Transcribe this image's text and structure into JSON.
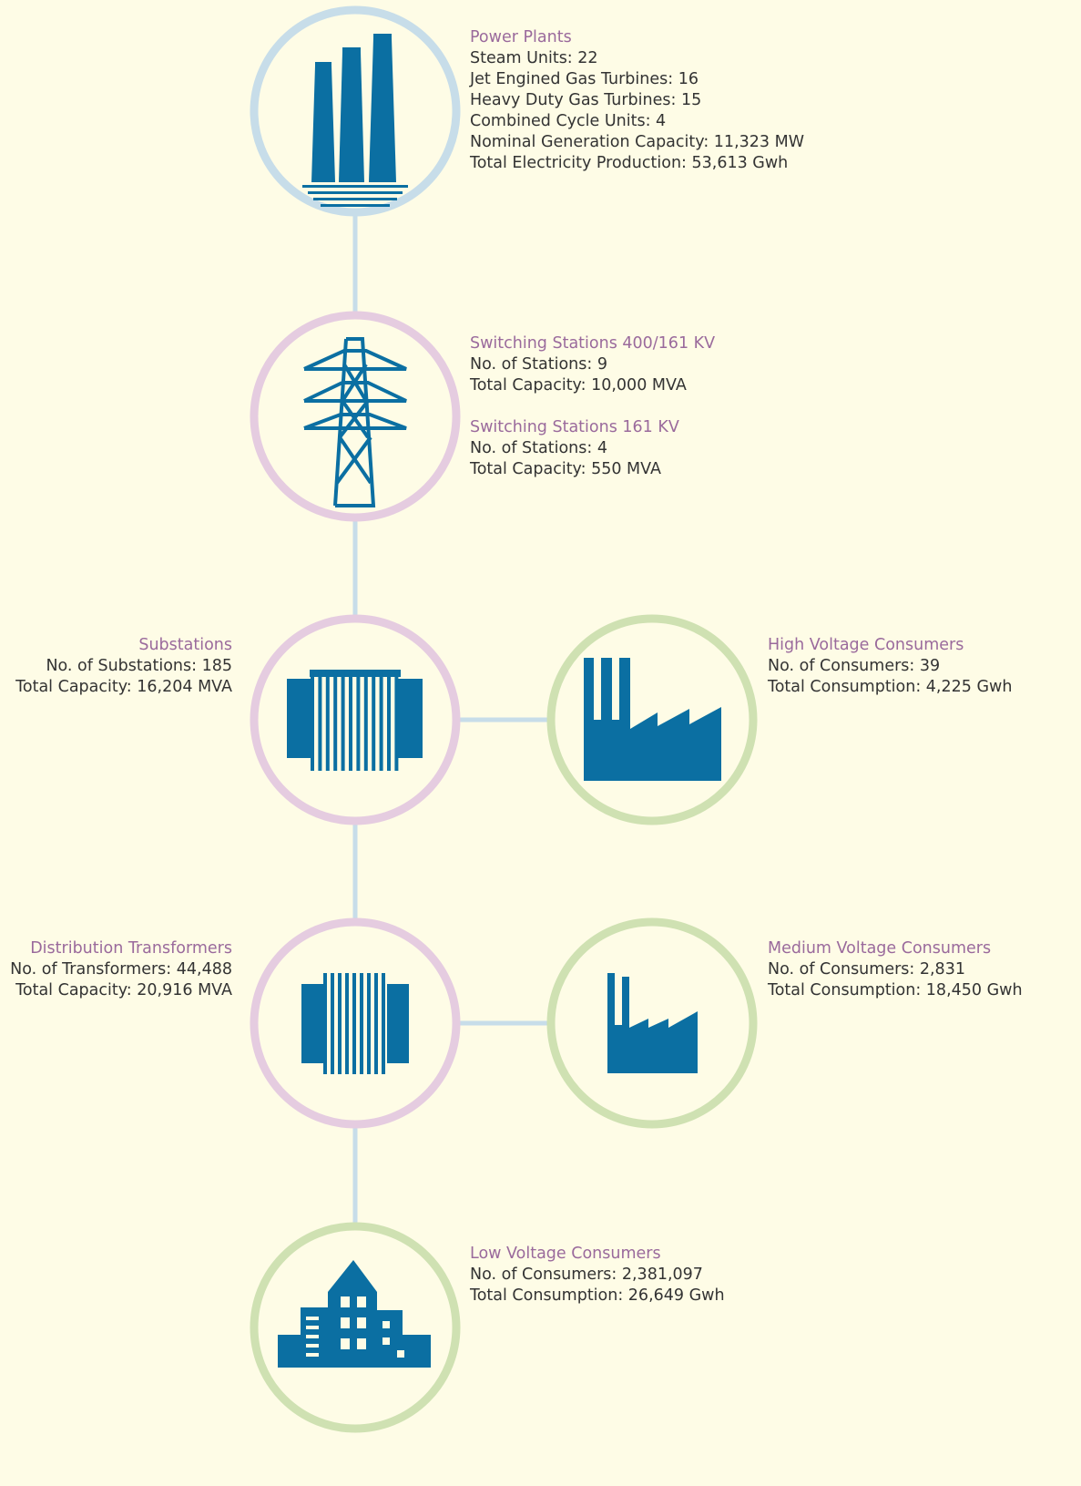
{
  "nodes": [
    {
      "sections": [
        {
          "title": "Power Plants",
          "lines": [
            "Steam Units: 22",
            "Jet Engined Gas Turbines: 16",
            "Heavy Duty Gas Turbines: 15",
            "Combined Cycle Units: 4",
            "Nominal Generation Capacity: 11,323 MW",
            "Total Electricity Production: 53,613 Gwh"
          ]
        }
      ]
    },
    {
      "sections": [
        {
          "title": "Switching Stations 400/161 KV",
          "lines": [
            "No. of Stations: 9",
            "Total Capacity: 10,000 MVA"
          ]
        },
        {
          "title": "Switching Stations 161 KV",
          "lines": [
            "No. of Stations: 4",
            "Total Capacity: 550 MVA"
          ]
        }
      ]
    },
    {
      "sections": [
        {
          "title": "Substations",
          "lines": [
            "No. of Substations: 185",
            "Total Capacity: 16,204 MVA"
          ]
        }
      ]
    },
    {
      "sections": [
        {
          "title": "High Voltage Consumers",
          "lines": [
            "No. of Consumers: 39",
            "Total Consumption: 4,225 Gwh"
          ]
        }
      ]
    },
    {
      "sections": [
        {
          "title": "Distribution Transformers",
          "lines": [
            "No. of Transformers: 44,488",
            "Total Capacity: 20,916 MVA"
          ]
        }
      ]
    },
    {
      "sections": [
        {
          "title": "Medium Voltage Consumers",
          "lines": [
            "No. of Consumers: 2,831",
            "Total Consumption: 18,450 Gwh"
          ]
        }
      ]
    },
    {
      "sections": [
        {
          "title": "Low Voltage Consumers",
          "lines": [
            "No. of Consumers: 2,381,097",
            "Total Consumption: 26,649 Gwh"
          ]
        }
      ]
    }
  ]
}
